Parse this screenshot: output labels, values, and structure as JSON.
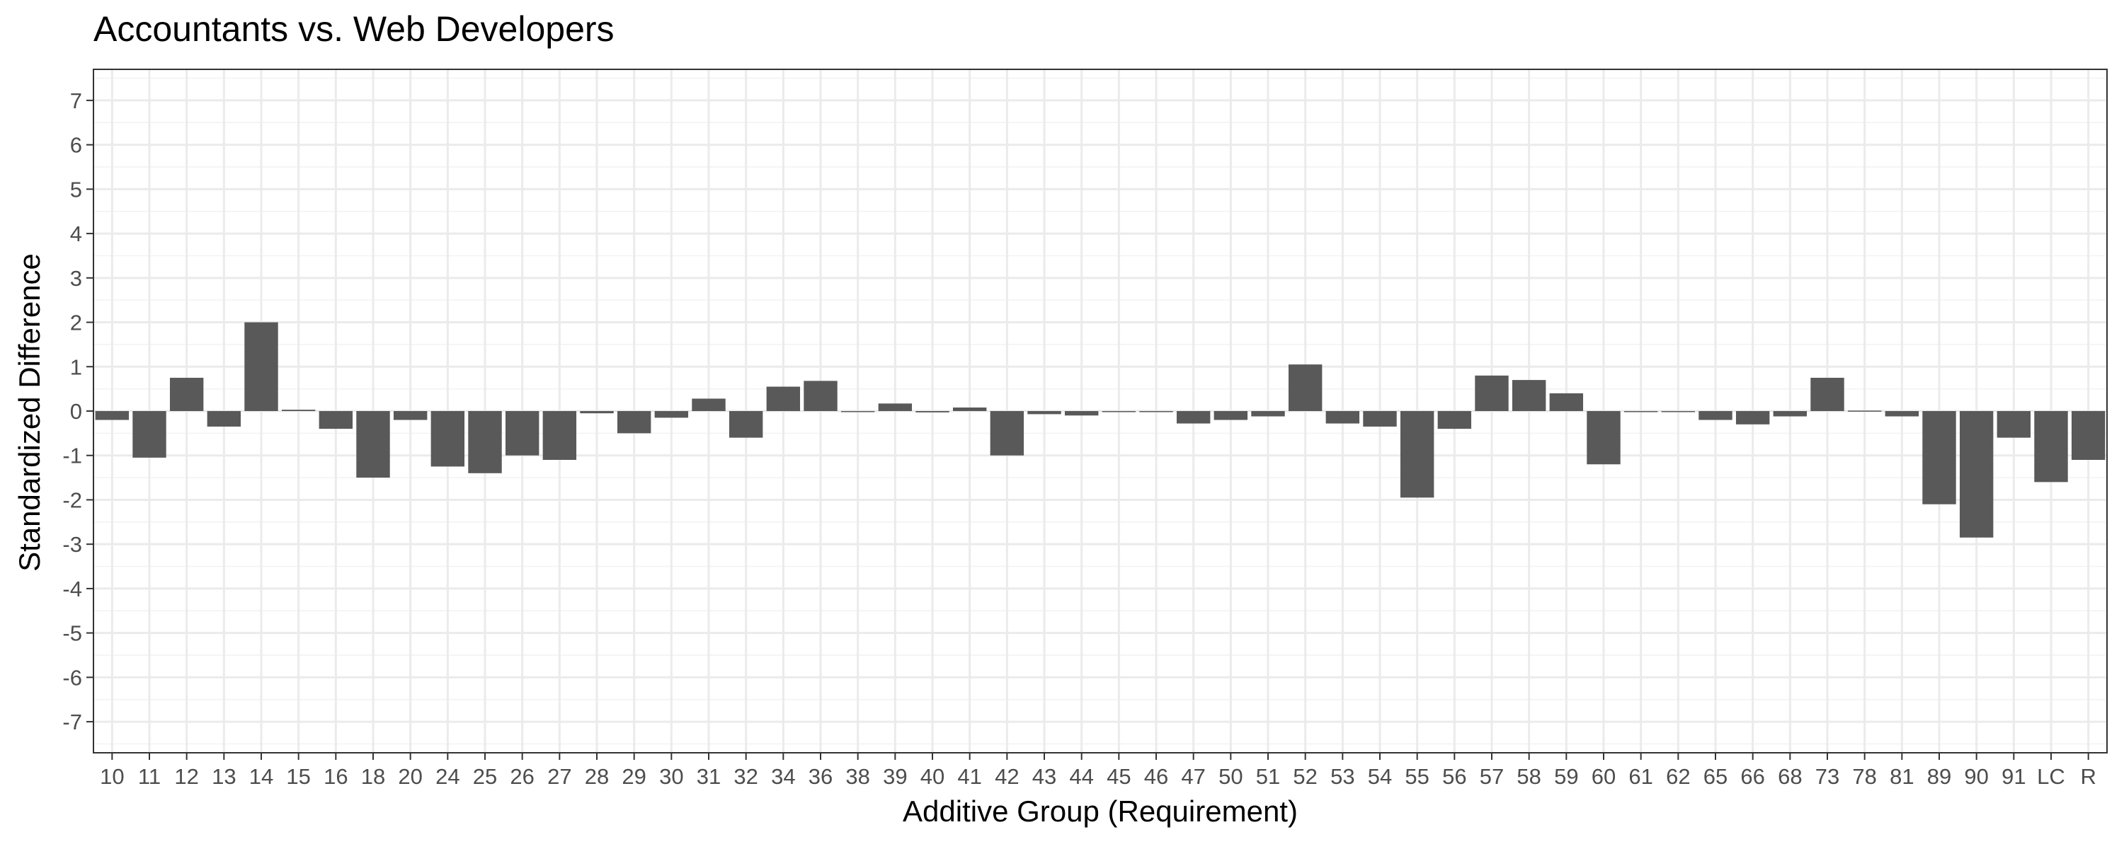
{
  "chart_data": {
    "type": "bar",
    "title": "Accountants vs. Web Developers",
    "xlabel": "Additive Group (Requirement)",
    "ylabel": "Standardized Difference",
    "ylim": [
      -7.7,
      7.7
    ],
    "yticks": [
      7,
      6,
      5,
      4,
      3,
      2,
      1,
      0,
      -1,
      -2,
      -3,
      -4,
      -5,
      -6,
      -7
    ],
    "grid": true,
    "bar_color": "#595959",
    "categories": [
      "10",
      "11",
      "12",
      "13",
      "14",
      "15",
      "16",
      "18",
      "20",
      "24",
      "25",
      "26",
      "27",
      "28",
      "29",
      "30",
      "31",
      "32",
      "34",
      "36",
      "38",
      "39",
      "40",
      "41",
      "42",
      "43",
      "44",
      "45",
      "46",
      "47",
      "50",
      "51",
      "52",
      "53",
      "54",
      "55",
      "56",
      "57",
      "58",
      "59",
      "60",
      "61",
      "62",
      "65",
      "66",
      "68",
      "73",
      "78",
      "81",
      "89",
      "90",
      "91",
      "LC",
      "R"
    ],
    "values": [
      -0.2,
      -1.05,
      0.75,
      -0.35,
      2.0,
      0.03,
      -0.4,
      -1.5,
      -0.2,
      -1.25,
      -1.4,
      -1.0,
      -1.1,
      -0.05,
      -0.5,
      -0.15,
      0.28,
      -0.6,
      0.55,
      0.68,
      0.0,
      0.17,
      -0.03,
      0.08,
      -1.0,
      -0.07,
      -0.1,
      -0.02,
      0.0,
      -0.28,
      -0.2,
      -0.12,
      1.05,
      -0.28,
      -0.35,
      -1.95,
      -0.4,
      0.8,
      0.7,
      0.4,
      -1.2,
      0.0,
      0.0,
      -0.2,
      -0.3,
      -0.12,
      0.75,
      0.01,
      -0.12,
      -2.1,
      -2.85,
      -0.6,
      -1.6,
      -1.1
    ]
  }
}
